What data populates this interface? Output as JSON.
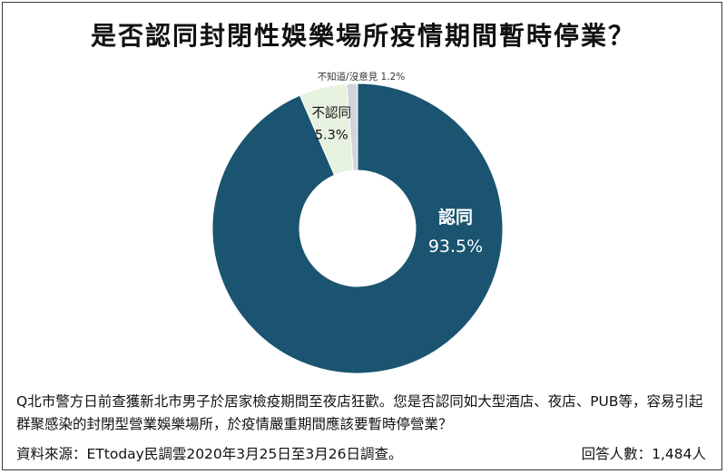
{
  "title": "是否認同封閉性娛樂場所疫情期間暫時停業？",
  "question": "Q北市警方日前查獲新北市男子於居家檢疫期間至夜店狂歡。您是否認同如大型酒店、夜店、PUB等，容易引起群聚感染的封閉型營業娛樂場所，於疫情嚴重期間應該要暫時停營業？",
  "source": "資料來源：ETtoday民調雲2020年3月25日至3月26日調查。",
  "respondents": "回答人數：1,484人",
  "chart_data": {
    "type": "pie",
    "variant": "donut",
    "slices": [
      {
        "label": "認同",
        "value": 93.5,
        "value_label": "93.5%",
        "color": "#1a5470"
      },
      {
        "label": "不認同",
        "value": 5.3,
        "value_label": "5.3%",
        "color": "#e6f2df"
      },
      {
        "label": "不知道/沒意見",
        "value": 1.2,
        "value_label": "1.2%",
        "color": "#d3d3de"
      }
    ],
    "start_angle": "12 o'clock",
    "direction": "clockwise",
    "legend": "none"
  }
}
